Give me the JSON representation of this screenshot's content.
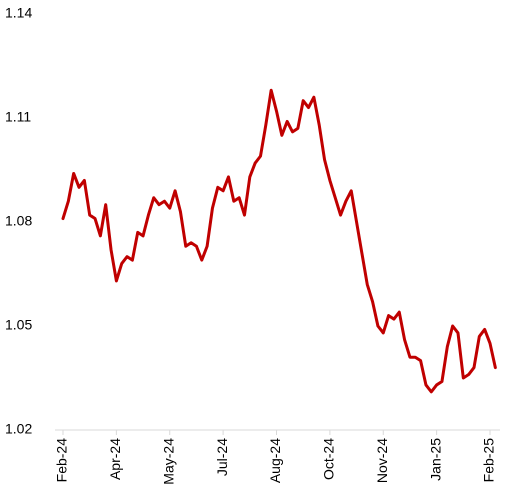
{
  "chart_data": {
    "type": "line",
    "categories": [
      "Feb-24",
      null,
      null,
      null,
      null,
      null,
      null,
      null,
      null,
      null,
      "Apr-24",
      null,
      null,
      null,
      null,
      null,
      null,
      null,
      null,
      null,
      "May-24",
      null,
      null,
      null,
      null,
      null,
      null,
      null,
      null,
      null,
      "Jul-24",
      null,
      null,
      null,
      null,
      null,
      null,
      null,
      null,
      null,
      "Aug-24",
      null,
      null,
      null,
      null,
      null,
      null,
      null,
      null,
      null,
      "Oct-24",
      null,
      null,
      null,
      null,
      null,
      null,
      null,
      null,
      null,
      "Nov-24",
      null,
      null,
      null,
      null,
      null,
      null,
      null,
      null,
      null,
      "Jan-25",
      null,
      null,
      null,
      null,
      null,
      null,
      null,
      null,
      null,
      "Feb-25",
      null
    ],
    "values": [
      1.081,
      1.086,
      1.094,
      1.09,
      1.092,
      1.082,
      1.081,
      1.076,
      1.085,
      1.072,
      1.063,
      1.068,
      1.07,
      1.069,
      1.077,
      1.076,
      1.082,
      1.087,
      1.085,
      1.086,
      1.084,
      1.089,
      1.083,
      1.073,
      1.074,
      1.073,
      1.069,
      1.073,
      1.084,
      1.09,
      1.089,
      1.093,
      1.086,
      1.087,
      1.082,
      1.093,
      1.097,
      1.099,
      1.108,
      1.118,
      1.112,
      1.105,
      1.109,
      1.106,
      1.107,
      1.115,
      1.113,
      1.116,
      1.108,
      1.098,
      1.092,
      1.087,
      1.082,
      1.086,
      1.089,
      1.08,
      1.071,
      1.062,
      1.057,
      1.05,
      1.048,
      1.053,
      1.052,
      1.054,
      1.046,
      1.041,
      1.041,
      1.04,
      1.033,
      1.031,
      1.033,
      1.034,
      1.044,
      1.05,
      1.048,
      1.035,
      1.036,
      1.038,
      1.047,
      1.049,
      1.045,
      1.038
    ],
    "color": "#c00000",
    "ylim": [
      1.02,
      1.14
    ],
    "yticks": [
      1.02,
      1.05,
      1.08,
      1.11,
      1.14
    ]
  }
}
